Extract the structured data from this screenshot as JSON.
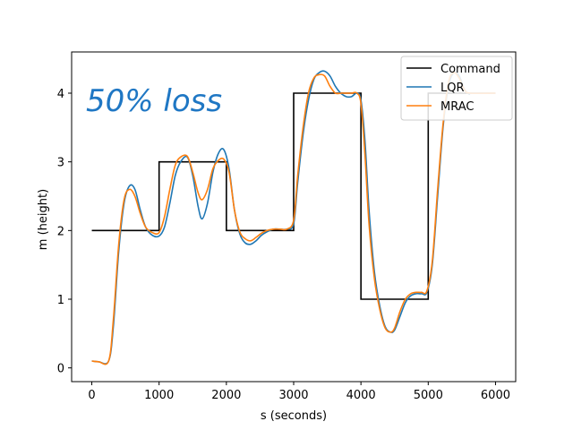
{
  "chart_data": {
    "type": "line",
    "xlabel": "s (seconds)",
    "ylabel": "m (height)",
    "xlim": [
      -300,
      6300
    ],
    "ylim": [
      -0.2,
      4.6
    ],
    "xticks": [
      0,
      1000,
      2000,
      3000,
      4000,
      5000,
      6000
    ],
    "yticks": [
      0,
      1,
      2,
      3,
      4
    ],
    "annotation": "50% loss",
    "legend": {
      "placement": "top-right",
      "entries": [
        "Command",
        "LQR",
        "MRAC"
      ]
    },
    "series": [
      {
        "name": "Command",
        "color": "#000000",
        "x": [
          0,
          1000,
          1000,
          2000,
          2000,
          3000,
          3000,
          4000,
          4000,
          5000,
          5000,
          6000
        ],
        "y": [
          2,
          2,
          3,
          3,
          2,
          2,
          4,
          4,
          1,
          1,
          4,
          4
        ]
      },
      {
        "name": "LQR",
        "color": "#1f77b4",
        "x": [
          0,
          100,
          250,
          320,
          400,
          480,
          560,
          640,
          720,
          800,
          900,
          1000,
          1080,
          1160,
          1240,
          1320,
          1420,
          1500,
          1580,
          1640,
          1720,
          1800,
          1880,
          1960,
          2040,
          2120,
          2200,
          2280,
          2360,
          2440,
          2520,
          2600,
          2700,
          2800,
          2900,
          3000,
          3060,
          3140,
          3220,
          3300,
          3380,
          3460,
          3540,
          3620,
          3700,
          3780,
          3860,
          3940,
          4000,
          4060,
          4120,
          4200,
          4280,
          4360,
          4440,
          4500,
          4580,
          4660,
          4740,
          4820,
          4900,
          4980,
          5060,
          5140,
          5220,
          5300,
          5380,
          5460,
          5540,
          5620
        ],
        "y": [
          0.1,
          0.09,
          0.1,
          0.6,
          1.7,
          2.4,
          2.65,
          2.6,
          2.3,
          2.05,
          1.93,
          1.92,
          2.05,
          2.4,
          2.8,
          3.0,
          3.07,
          2.8,
          2.35,
          2.17,
          2.4,
          2.85,
          3.12,
          3.18,
          2.9,
          2.3,
          1.95,
          1.82,
          1.8,
          1.85,
          1.93,
          1.98,
          2.02,
          2.02,
          2.02,
          2.1,
          2.7,
          3.4,
          3.9,
          4.2,
          4.3,
          4.32,
          4.25,
          4.1,
          4.0,
          3.95,
          3.95,
          4.0,
          3.9,
          3.3,
          2.3,
          1.4,
          0.9,
          0.6,
          0.52,
          0.55,
          0.75,
          0.95,
          1.05,
          1.08,
          1.08,
          1.1,
          1.5,
          2.5,
          3.5,
          4.1,
          4.3,
          4.25,
          4.05,
          3.98
        ]
      },
      {
        "name": "MRAC",
        "color": "#ff7f0e",
        "x": [
          0,
          100,
          250,
          320,
          400,
          480,
          560,
          640,
          720,
          800,
          900,
          1000,
          1080,
          1160,
          1240,
          1320,
          1420,
          1500,
          1580,
          1640,
          1720,
          1800,
          1880,
          1960,
          2040,
          2120,
          2200,
          2280,
          2360,
          2440,
          2520,
          2600,
          2700,
          2800,
          2900,
          3000,
          3060,
          3140,
          3220,
          3300,
          3380,
          3460,
          3540,
          3620,
          3700,
          3780,
          3860,
          3940,
          4000,
          4060,
          4120,
          4200,
          4280,
          4360,
          4440,
          4500,
          4580,
          4660,
          4740,
          4820,
          4900,
          4980,
          5060,
          5140,
          5220,
          5300,
          5380,
          5460,
          5540,
          5620,
          6000
        ],
        "y": [
          0.1,
          0.09,
          0.1,
          0.7,
          1.8,
          2.45,
          2.6,
          2.5,
          2.25,
          2.05,
          1.97,
          1.97,
          2.2,
          2.6,
          2.95,
          3.07,
          3.08,
          2.85,
          2.55,
          2.45,
          2.6,
          2.9,
          3.02,
          3.04,
          2.85,
          2.3,
          1.98,
          1.88,
          1.85,
          1.9,
          1.96,
          2.0,
          2.02,
          2.02,
          2.02,
          2.15,
          2.8,
          3.5,
          4.0,
          4.22,
          4.27,
          4.25,
          4.1,
          4.0,
          4.0,
          4.0,
          4.0,
          4.0,
          3.85,
          3.1,
          2.1,
          1.3,
          0.85,
          0.58,
          0.52,
          0.58,
          0.82,
          1.0,
          1.08,
          1.1,
          1.1,
          1.12,
          1.55,
          2.6,
          3.55,
          4.15,
          4.3,
          4.22,
          4.05,
          4.0,
          4.0
        ]
      }
    ]
  }
}
